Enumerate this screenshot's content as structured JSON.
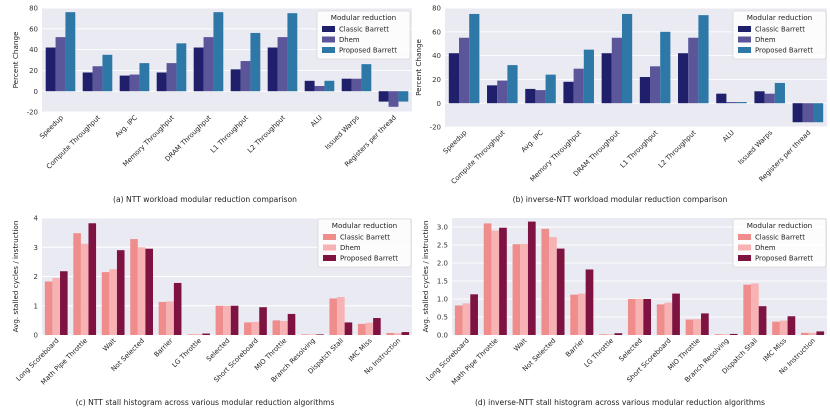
{
  "colors": {
    "plot_bg": "#eaeaf2",
    "grid": "#ffffff",
    "top_series": [
      "#1f1f6b",
      "#5b559a",
      "#2e78a8"
    ],
    "bottom_series": [
      "#ef8c8c",
      "#f7b3b3",
      "#7e1240"
    ]
  },
  "chart_data": [
    {
      "id": "a",
      "type": "bar",
      "caption": "(a) NTT workload modular reduction comparison",
      "ylabel": "Percent Change",
      "ylim": [
        -20,
        80
      ],
      "yticks": [
        -20,
        0,
        20,
        40,
        60,
        80
      ],
      "legend_title": "Modular reduction",
      "categories": [
        "Speedup",
        "Compute Throughput",
        "Avg. IPC",
        "Memory Throughput",
        "DRAM Throughput",
        "L1 Throughput",
        "L2 Throughput",
        "ALU",
        "Issued Warps",
        "Registers per thread"
      ],
      "series": [
        {
          "name": "Classic Barrett",
          "values": [
            42,
            18,
            15,
            18,
            42,
            21,
            42,
            10,
            12,
            -10
          ]
        },
        {
          "name": "Dhem",
          "values": [
            52,
            24,
            16,
            27,
            52,
            29,
            52,
            5,
            12,
            -15
          ]
        },
        {
          "name": "Proposed Barrett",
          "values": [
            76,
            35,
            27,
            46,
            76,
            56,
            75,
            10,
            26,
            -10
          ]
        }
      ]
    },
    {
      "id": "b",
      "type": "bar",
      "caption": "(b) inverse-NTT workload modular reduction comparison",
      "ylabel": "Percent Change",
      "ylim": [
        -20,
        80
      ],
      "yticks": [
        -20,
        0,
        20,
        40,
        60,
        80
      ],
      "legend_title": "Modular reduction",
      "categories": [
        "Speedup",
        "Compute Throughput",
        "Avg. IPC",
        "Memory Throughput",
        "DRAM Throughput",
        "L1 Throughput",
        "L2 Throughput",
        "ALU",
        "Issued Warps",
        "Registers per thread"
      ],
      "series": [
        {
          "name": "Classic Barrett",
          "values": [
            42,
            15,
            12,
            18,
            42,
            22,
            42,
            8,
            10,
            -16
          ]
        },
        {
          "name": "Dhem",
          "values": [
            55,
            19,
            11,
            29,
            55,
            31,
            55,
            1,
            8,
            -16
          ]
        },
        {
          "name": "Proposed Barrett",
          "values": [
            75,
            32,
            24,
            45,
            75,
            60,
            74,
            1,
            17,
            -16
          ]
        }
      ]
    },
    {
      "id": "c",
      "type": "bar",
      "caption": "(c) NTT stall histogram across various modular reduction algorithms",
      "ylabel": "Avg. stalled cycles / instruction",
      "ylim": [
        0,
        4
      ],
      "yticks": [
        0,
        1,
        2,
        3,
        4
      ],
      "legend_title": "Modular reduction",
      "categories": [
        "Long Scoreboard",
        "Math Pipe Throttle",
        "Wait",
        "Not Selected",
        "Barrier",
        "LG Throttle",
        "Selected",
        "Short Scoreboard",
        "MIO Throttle",
        "Branch Resolving",
        "Dispatch Stall",
        "IMC Miss",
        "No Instruction"
      ],
      "series": [
        {
          "name": "Classic Barrett",
          "values": [
            1.83,
            3.48,
            2.15,
            3.28,
            1.13,
            0.02,
            1.0,
            0.43,
            0.5,
            0.02,
            1.25,
            0.38,
            0.07
          ]
        },
        {
          "name": "Dhem",
          "values": [
            1.95,
            3.12,
            2.25,
            3.0,
            1.15,
            0.03,
            1.0,
            0.45,
            0.48,
            0.02,
            1.3,
            0.42,
            0.06
          ]
        },
        {
          "name": "Proposed Barrett",
          "values": [
            2.18,
            3.82,
            2.9,
            2.95,
            1.78,
            0.05,
            1.0,
            0.95,
            0.72,
            0.02,
            0.43,
            0.58,
            0.1
          ]
        }
      ]
    },
    {
      "id": "d",
      "type": "bar",
      "caption": "(d) inverse-NTT stall histogram across various modular reduction algorithms",
      "ylabel": "Avg. stalled cycles / instruction",
      "ylim": [
        0,
        3.25
      ],
      "yticks": [
        0,
        0.5,
        1.0,
        1.5,
        2.0,
        2.5,
        3.0
      ],
      "legend_title": "Modular reduction",
      "categories": [
        "Long Scoreboard",
        "Math Pipe Throttle",
        "Wait",
        "Not Selected",
        "Barrier",
        "LG Throttle",
        "Selected",
        "Short Scoreboard",
        "MIO Throttle",
        "Branch Resolving",
        "Dispatch Stall",
        "IMC Miss",
        "No Instruction"
      ],
      "series": [
        {
          "name": "Classic Barrett",
          "values": [
            0.82,
            3.1,
            2.52,
            2.95,
            1.12,
            0.02,
            1.0,
            0.85,
            0.43,
            0.02,
            1.4,
            0.37,
            0.06
          ]
        },
        {
          "name": "Dhem",
          "values": [
            0.88,
            2.9,
            2.53,
            2.72,
            1.15,
            0.02,
            1.0,
            0.9,
            0.44,
            0.02,
            1.43,
            0.4,
            0.06
          ]
        },
        {
          "name": "Proposed Barrett",
          "values": [
            1.13,
            2.98,
            3.15,
            2.4,
            1.82,
            0.05,
            1.0,
            1.15,
            0.6,
            0.03,
            0.8,
            0.52,
            0.1
          ]
        }
      ]
    }
  ]
}
